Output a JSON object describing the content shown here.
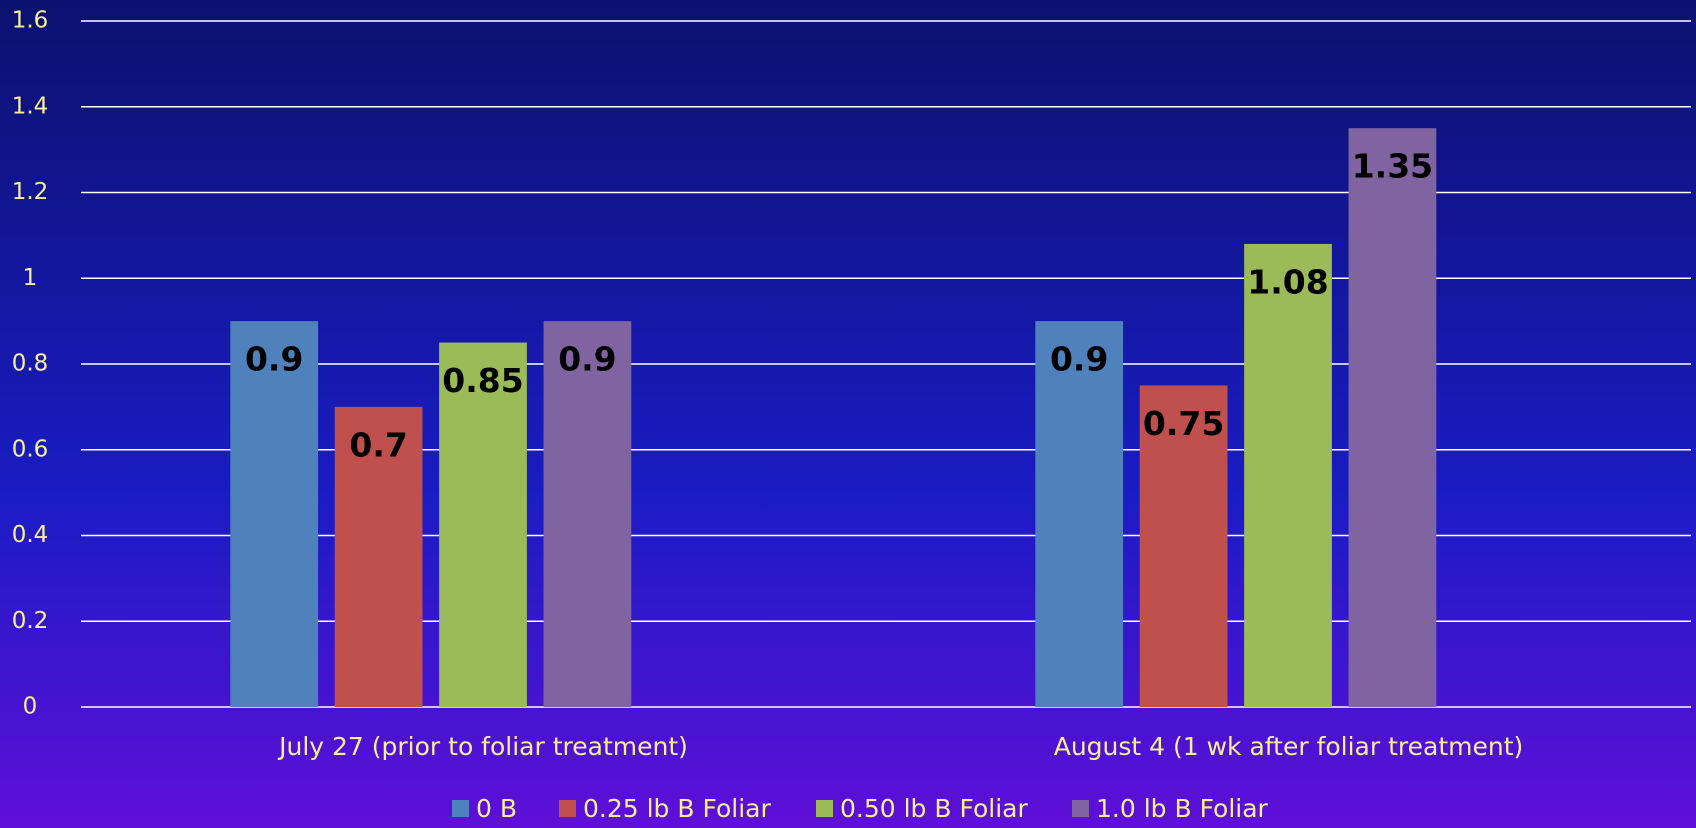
{
  "chart_data": {
    "type": "bar",
    "categories": [
      "July 27 (prior to foliar treatment)",
      "August 4 (1 wk after foliar treatment)"
    ],
    "series": [
      {
        "name": "0 B",
        "color": "#4f81bd",
        "values": [
          0.9,
          0.9
        ]
      },
      {
        "name": "0.25 lb B Foliar",
        "color": "#c0504d",
        "values": [
          0.7,
          0.75
        ]
      },
      {
        "name": "0.50 lb B Foliar",
        "color": "#9bbb59",
        "values": [
          0.85,
          1.08
        ]
      },
      {
        "name": "1.0 lb B Foliar",
        "color": "#8064a2",
        "values": [
          0.9,
          1.35
        ]
      }
    ],
    "ylim": [
      0,
      1.6
    ],
    "yticks": [
      0,
      0.2,
      0.4,
      0.6,
      0.8,
      1,
      1.2,
      1.4,
      1.6
    ],
    "grid": true,
    "legend": "bottom"
  }
}
